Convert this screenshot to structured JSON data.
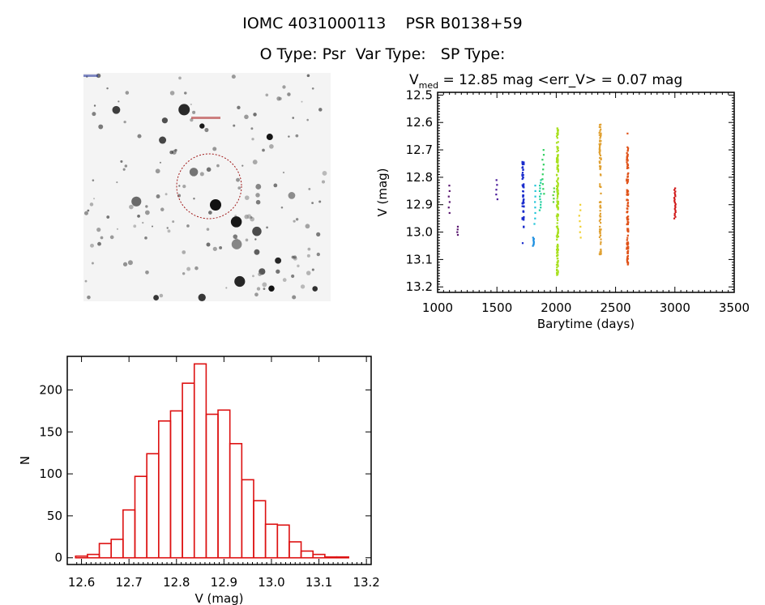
{
  "header": {
    "title": "IOMC 4031000113    PSR B0138+59",
    "subtitle": "O Type: Psr  Var Type:   SP Type:"
  },
  "image_panel": {
    "description_label": "sky finding chart"
  },
  "chart_data": [
    {
      "type": "scatter",
      "title_prefix": "V",
      "title_sub": "med",
      "title_rest": " = 12.85 mag <err_V> = 0.07 mag",
      "xlabel": "Barytime (days)",
      "ylabel": "V (mag)",
      "xlim": [
        1000,
        3500
      ],
      "ylim": [
        13.22,
        12.49
      ],
      "xticks": [
        "1000",
        "1500",
        "2000",
        "2500",
        "3000",
        "3500"
      ],
      "yticks": [
        "12.5",
        "12.6",
        "12.7",
        "12.8",
        "12.9",
        "13.0",
        "13.1",
        "13.2"
      ],
      "clusters": [
        {
          "x": 1100,
          "y_min": 12.83,
          "y_max": 12.93,
          "n": 6,
          "color": "#5a1670"
        },
        {
          "x": 1170,
          "y_min": 12.98,
          "y_max": 13.01,
          "n": 4,
          "color": "#5a1670"
        },
        {
          "x": 1500,
          "y_min": 12.81,
          "y_max": 12.88,
          "n": 5,
          "color": "#4a1a9a"
        },
        {
          "x": 1720,
          "y_min": 12.74,
          "y_max": 12.99,
          "n": 60,
          "color": "#1a2ccc"
        },
        {
          "x": 1722,
          "y_min": 13.04,
          "y_max": 13.04,
          "n": 1,
          "color": "#1a2ccc"
        },
        {
          "x": 1805,
          "y_min": 13.02,
          "y_max": 13.05,
          "n": 8,
          "color": "#1a8ee0"
        },
        {
          "x": 1820,
          "y_min": 12.83,
          "y_max": 12.97,
          "n": 8,
          "color": "#20c4d8"
        },
        {
          "x": 1865,
          "y_min": 12.81,
          "y_max": 12.92,
          "n": 12,
          "color": "#20d0a0"
        },
        {
          "x": 1890,
          "y_min": 12.7,
          "y_max": 12.86,
          "n": 10,
          "color": "#30d060"
        },
        {
          "x": 1980,
          "y_min": 12.84,
          "y_max": 12.89,
          "n": 5,
          "color": "#60d040"
        },
        {
          "x": 2010,
          "y_min": 12.62,
          "y_max": 13.16,
          "n": 150,
          "color": "#a8e020"
        },
        {
          "x": 2200,
          "y_min": 12.9,
          "y_max": 13.02,
          "n": 7,
          "color": "#f0d030"
        },
        {
          "x": 2370,
          "y_min": 12.6,
          "y_max": 13.09,
          "n": 90,
          "color": "#e0a030"
        },
        {
          "x": 2600,
          "y_min": 12.69,
          "y_max": 13.12,
          "n": 120,
          "color": "#e05218"
        },
        {
          "x": 2600,
          "y_min": 12.64,
          "y_max": 12.64,
          "n": 1,
          "color": "#e05218"
        },
        {
          "x": 3000,
          "y_min": 12.84,
          "y_max": 12.95,
          "n": 20,
          "color": "#d01818"
        }
      ]
    },
    {
      "type": "bar",
      "subtype": "histogram",
      "xlabel": "V (mag)",
      "ylabel": "N",
      "xlim": [
        12.57,
        13.21
      ],
      "ylim": [
        -8,
        240
      ],
      "bin_width": 0.025,
      "bin_centers": [
        12.6,
        12.625,
        12.65,
        12.675,
        12.7,
        12.725,
        12.75,
        12.775,
        12.8,
        12.825,
        12.85,
        12.875,
        12.9,
        12.925,
        12.95,
        12.975,
        13.0,
        13.025,
        13.05,
        13.075,
        13.1,
        13.125,
        13.15
      ],
      "values": [
        2,
        4,
        17,
        22,
        57,
        97,
        124,
        163,
        175,
        208,
        231,
        171,
        176,
        136,
        93,
        68,
        40,
        39,
        19,
        8,
        4,
        1,
        1
      ],
      "bar_color": "#dd1111",
      "xticks": [
        "12.6",
        "12.7",
        "12.8",
        "12.9",
        "13.0",
        "13.1",
        "13.2"
      ],
      "yticks": [
        "0",
        "50",
        "100",
        "150",
        "200"
      ]
    }
  ]
}
